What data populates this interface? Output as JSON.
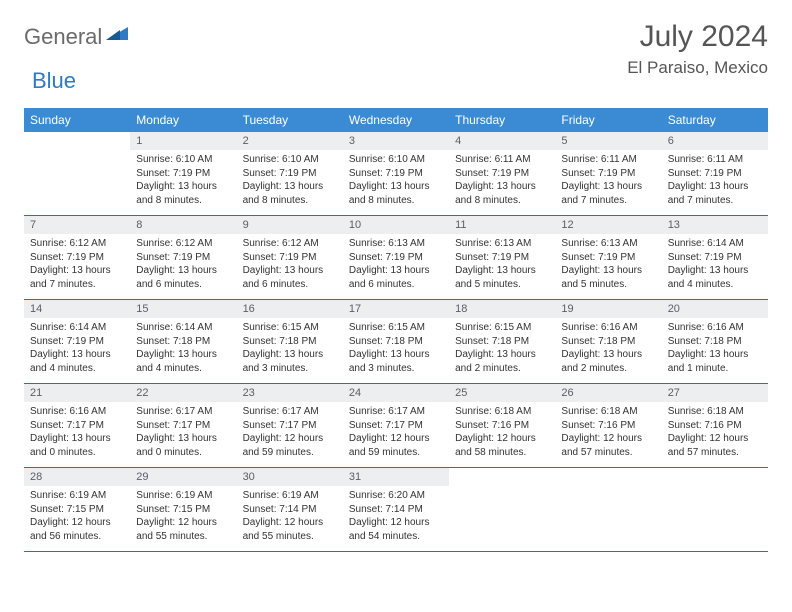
{
  "logo": {
    "general": "General",
    "blue": "Blue"
  },
  "title": "July 2024",
  "location": "El Paraiso, Mexico",
  "colors": {
    "header_bg": "#3b8bd4",
    "header_text": "#ffffff",
    "daynum_bg": "#eceef0",
    "border": "#2f6fa8",
    "logo_blue": "#2f7ac4",
    "logo_gray": "#6b6b6b"
  },
  "days_of_week": [
    "Sunday",
    "Monday",
    "Tuesday",
    "Wednesday",
    "Thursday",
    "Friday",
    "Saturday"
  ],
  "weeks": [
    [
      {
        "n": "",
        "sr": "",
        "ss": "",
        "dl": ""
      },
      {
        "n": "1",
        "sr": "Sunrise: 6:10 AM",
        "ss": "Sunset: 7:19 PM",
        "dl": "Daylight: 13 hours and 8 minutes."
      },
      {
        "n": "2",
        "sr": "Sunrise: 6:10 AM",
        "ss": "Sunset: 7:19 PM",
        "dl": "Daylight: 13 hours and 8 minutes."
      },
      {
        "n": "3",
        "sr": "Sunrise: 6:10 AM",
        "ss": "Sunset: 7:19 PM",
        "dl": "Daylight: 13 hours and 8 minutes."
      },
      {
        "n": "4",
        "sr": "Sunrise: 6:11 AM",
        "ss": "Sunset: 7:19 PM",
        "dl": "Daylight: 13 hours and 8 minutes."
      },
      {
        "n": "5",
        "sr": "Sunrise: 6:11 AM",
        "ss": "Sunset: 7:19 PM",
        "dl": "Daylight: 13 hours and 7 minutes."
      },
      {
        "n": "6",
        "sr": "Sunrise: 6:11 AM",
        "ss": "Sunset: 7:19 PM",
        "dl": "Daylight: 13 hours and 7 minutes."
      }
    ],
    [
      {
        "n": "7",
        "sr": "Sunrise: 6:12 AM",
        "ss": "Sunset: 7:19 PM",
        "dl": "Daylight: 13 hours and 7 minutes."
      },
      {
        "n": "8",
        "sr": "Sunrise: 6:12 AM",
        "ss": "Sunset: 7:19 PM",
        "dl": "Daylight: 13 hours and 6 minutes."
      },
      {
        "n": "9",
        "sr": "Sunrise: 6:12 AM",
        "ss": "Sunset: 7:19 PM",
        "dl": "Daylight: 13 hours and 6 minutes."
      },
      {
        "n": "10",
        "sr": "Sunrise: 6:13 AM",
        "ss": "Sunset: 7:19 PM",
        "dl": "Daylight: 13 hours and 6 minutes."
      },
      {
        "n": "11",
        "sr": "Sunrise: 6:13 AM",
        "ss": "Sunset: 7:19 PM",
        "dl": "Daylight: 13 hours and 5 minutes."
      },
      {
        "n": "12",
        "sr": "Sunrise: 6:13 AM",
        "ss": "Sunset: 7:19 PM",
        "dl": "Daylight: 13 hours and 5 minutes."
      },
      {
        "n": "13",
        "sr": "Sunrise: 6:14 AM",
        "ss": "Sunset: 7:19 PM",
        "dl": "Daylight: 13 hours and 4 minutes."
      }
    ],
    [
      {
        "n": "14",
        "sr": "Sunrise: 6:14 AM",
        "ss": "Sunset: 7:19 PM",
        "dl": "Daylight: 13 hours and 4 minutes."
      },
      {
        "n": "15",
        "sr": "Sunrise: 6:14 AM",
        "ss": "Sunset: 7:18 PM",
        "dl": "Daylight: 13 hours and 4 minutes."
      },
      {
        "n": "16",
        "sr": "Sunrise: 6:15 AM",
        "ss": "Sunset: 7:18 PM",
        "dl": "Daylight: 13 hours and 3 minutes."
      },
      {
        "n": "17",
        "sr": "Sunrise: 6:15 AM",
        "ss": "Sunset: 7:18 PM",
        "dl": "Daylight: 13 hours and 3 minutes."
      },
      {
        "n": "18",
        "sr": "Sunrise: 6:15 AM",
        "ss": "Sunset: 7:18 PM",
        "dl": "Daylight: 13 hours and 2 minutes."
      },
      {
        "n": "19",
        "sr": "Sunrise: 6:16 AM",
        "ss": "Sunset: 7:18 PM",
        "dl": "Daylight: 13 hours and 2 minutes."
      },
      {
        "n": "20",
        "sr": "Sunrise: 6:16 AM",
        "ss": "Sunset: 7:18 PM",
        "dl": "Daylight: 13 hours and 1 minute."
      }
    ],
    [
      {
        "n": "21",
        "sr": "Sunrise: 6:16 AM",
        "ss": "Sunset: 7:17 PM",
        "dl": "Daylight: 13 hours and 0 minutes."
      },
      {
        "n": "22",
        "sr": "Sunrise: 6:17 AM",
        "ss": "Sunset: 7:17 PM",
        "dl": "Daylight: 13 hours and 0 minutes."
      },
      {
        "n": "23",
        "sr": "Sunrise: 6:17 AM",
        "ss": "Sunset: 7:17 PM",
        "dl": "Daylight: 12 hours and 59 minutes."
      },
      {
        "n": "24",
        "sr": "Sunrise: 6:17 AM",
        "ss": "Sunset: 7:17 PM",
        "dl": "Daylight: 12 hours and 59 minutes."
      },
      {
        "n": "25",
        "sr": "Sunrise: 6:18 AM",
        "ss": "Sunset: 7:16 PM",
        "dl": "Daylight: 12 hours and 58 minutes."
      },
      {
        "n": "26",
        "sr": "Sunrise: 6:18 AM",
        "ss": "Sunset: 7:16 PM",
        "dl": "Daylight: 12 hours and 57 minutes."
      },
      {
        "n": "27",
        "sr": "Sunrise: 6:18 AM",
        "ss": "Sunset: 7:16 PM",
        "dl": "Daylight: 12 hours and 57 minutes."
      }
    ],
    [
      {
        "n": "28",
        "sr": "Sunrise: 6:19 AM",
        "ss": "Sunset: 7:15 PM",
        "dl": "Daylight: 12 hours and 56 minutes."
      },
      {
        "n": "29",
        "sr": "Sunrise: 6:19 AM",
        "ss": "Sunset: 7:15 PM",
        "dl": "Daylight: 12 hours and 55 minutes."
      },
      {
        "n": "30",
        "sr": "Sunrise: 6:19 AM",
        "ss": "Sunset: 7:14 PM",
        "dl": "Daylight: 12 hours and 55 minutes."
      },
      {
        "n": "31",
        "sr": "Sunrise: 6:20 AM",
        "ss": "Sunset: 7:14 PM",
        "dl": "Daylight: 12 hours and 54 minutes."
      },
      {
        "n": "",
        "sr": "",
        "ss": "",
        "dl": ""
      },
      {
        "n": "",
        "sr": "",
        "ss": "",
        "dl": ""
      },
      {
        "n": "",
        "sr": "",
        "ss": "",
        "dl": ""
      }
    ]
  ]
}
